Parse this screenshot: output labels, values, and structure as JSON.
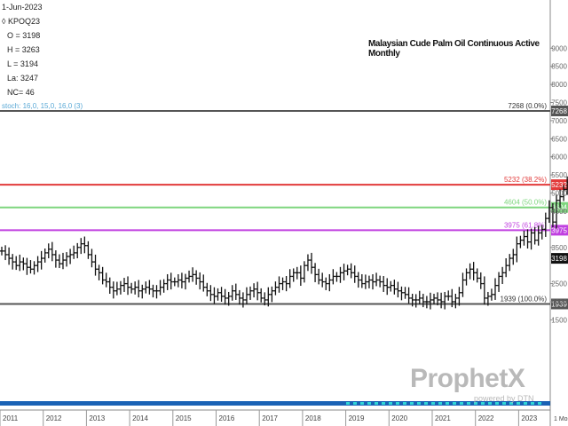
{
  "info": {
    "date": "1-Jun-2023",
    "symbol": "KPOQ23",
    "open": "O = 3198",
    "high": "H = 3263",
    "low": "L = 3194",
    "last": "La: 3247",
    "nc": "NC= 46",
    "stoch": "stoch: 16,0, 15,0, 16,0 (3)"
  },
  "brand": {
    "name": "ProphetX",
    "powered": "powered by DTN"
  },
  "colors": {
    "resistance_line": "#555555",
    "fib_382": "#e23a3a",
    "fib_500": "#7fd67f",
    "fib_618": "#c040e0",
    "price_bars": "#111111",
    "current_label": "#111111"
  },
  "chart_data": {
    "type": "ohlc",
    "title": "Malaysian Cude Palm Oil Continuous Active Monthly",
    "xlabel": "",
    "ylabel": "",
    "ylim": [
      1500,
      10000
    ],
    "y_ticks": [
      {
        "value": 9000,
        "label": "9000"
      },
      {
        "value": 8500,
        "label": "8500"
      },
      {
        "value": 8000,
        "label": "8000"
      },
      {
        "value": 7500,
        "label": "7500"
      },
      {
        "value": 7000,
        "label": "7000"
      },
      {
        "value": 6500,
        "label": "6500"
      },
      {
        "value": 6000,
        "label": "6000"
      },
      {
        "value": 5500,
        "label": "5500"
      },
      {
        "value": 5000,
        "label": "5000"
      },
      {
        "value": 4500,
        "label": "4500"
      },
      {
        "value": 3500,
        "label": "3500"
      },
      {
        "value": 2500,
        "label": "2500"
      },
      {
        "value": 2000,
        "label": "2000"
      },
      {
        "value": 1500,
        "label": "1500"
      }
    ],
    "x_ticks": [
      "2011",
      "2012",
      "2013",
      "2014",
      "2015",
      "2016",
      "2017",
      "2018",
      "2019",
      "2020",
      "2021",
      "2022",
      "2023"
    ],
    "x_extra_label": "1 Mos",
    "levels": [
      {
        "value": 7268,
        "label": "7268 (0.0%)",
        "box": "7268",
        "color": "#555555"
      },
      {
        "value": 5232,
        "label": "5232 (38.2%)",
        "box": "5232",
        "color": "#e23a3a"
      },
      {
        "value": 4604,
        "label": "4604 (50.0%)",
        "box": "4604",
        "color": "#7fd67f"
      },
      {
        "value": 3975,
        "label": "3975 (61.8%)",
        "box": "3975",
        "color": "#c040e0"
      },
      {
        "value": 1939,
        "label": "1939 (100.0%)",
        "box": "1939",
        "color": "#555555"
      }
    ],
    "current": {
      "value": 3198,
      "label": "3198"
    },
    "start_year": 2011,
    "closes": [
      3400,
      3300,
      3200,
      3100,
      3000,
      3100,
      3050,
      2950,
      2900,
      3000,
      3100,
      3200,
      3350,
      3450,
      3300,
      3150,
      3050,
      3150,
      3250,
      3300,
      3350,
      3500,
      3600,
      3550,
      3300,
      3100,
      2900,
      2800,
      2600,
      2550,
      2400,
      2300,
      2350,
      2450,
      2500,
      2400,
      2350,
      2400,
      2300,
      2350,
      2400,
      2350,
      2300,
      2300,
      2400,
      2500,
      2600,
      2550,
      2550,
      2600,
      2550,
      2650,
      2700,
      2750,
      2650,
      2550,
      2400,
      2300,
      2200,
      2150,
      2250,
      2150,
      2100,
      2150,
      2300,
      2200,
      2100,
      2050,
      2200,
      2300,
      2350,
      2250,
      2100,
      2050,
      2200,
      2300,
      2400,
      2500,
      2550,
      2500,
      2700,
      2800,
      2800,
      2650,
      3000,
      3150,
      2950,
      2750,
      2600,
      2550,
      2500,
      2600,
      2700,
      2700,
      2800,
      2850,
      2900,
      2800,
      2700,
      2600,
      2500,
      2550,
      2600,
      2550,
      2600,
      2550,
      2450,
      2400,
      2450,
      2350,
      2300,
      2250,
      2200,
      2100,
      2050,
      2050,
      2100,
      2000,
      2000,
      2050,
      2100,
      2050,
      2000,
      2150,
      2150,
      2000,
      2100,
      2250,
      2600,
      2800,
      2900,
      2800,
      2650,
      2500,
      2100,
      2150,
      2200,
      2450,
      2700,
      2800,
      3000,
      3200,
      3300,
      3600,
      3700,
      3800,
      3650,
      3900,
      3700,
      3900,
      4000,
      4300,
      4600,
      4200,
      4800,
      4900,
      5100,
      5300,
      6000,
      6300,
      7000,
      6300,
      5500,
      4300,
      3800,
      4000,
      3700,
      3800,
      3700,
      3800,
      3600,
      3800,
      3900,
      3600,
      3300,
      3198
    ]
  }
}
